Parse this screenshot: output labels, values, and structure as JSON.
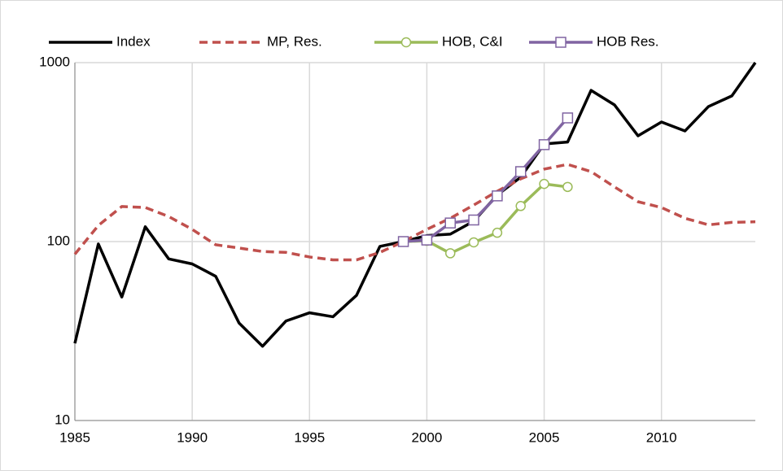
{
  "chart_data": {
    "type": "line",
    "log_y": true,
    "grid": true,
    "legend": "top",
    "x": [
      1985,
      1986,
      1987,
      1988,
      1989,
      1990,
      1991,
      1992,
      1993,
      1994,
      1995,
      1996,
      1997,
      1998,
      1999,
      2000,
      2001,
      2002,
      2003,
      2004,
      2005,
      2006,
      2007,
      2008,
      2009,
      2010,
      2011,
      2012,
      2013,
      2014
    ],
    "xlim": [
      1985,
      2014
    ],
    "xticks": [
      1985,
      1990,
      1995,
      2000,
      2005,
      2010
    ],
    "ylim": [
      10,
      1000
    ],
    "yticks": [
      10,
      100,
      1000
    ],
    "series": [
      {
        "name": "Index",
        "color": "#000000",
        "style": "solid",
        "marker": "none",
        "values": [
          27,
          97,
          49,
          121,
          80,
          75,
          64,
          35,
          26,
          36,
          40,
          38,
          50,
          94,
          100,
          108,
          110,
          130,
          182,
          229,
          351,
          360,
          700,
          580,
          390,
          466,
          415,
          568,
          652,
          1000
        ]
      },
      {
        "name": "MP, Res.",
        "color": "#c0504d",
        "style": "dashed",
        "marker": "none",
        "values": [
          85,
          123,
          157,
          155,
          138,
          117,
          96,
          92,
          88,
          87,
          82,
          79,
          79,
          87,
          100,
          117,
          135,
          160,
          191,
          224,
          254,
          270,
          246,
          202,
          167,
          155,
          135,
          124,
          128,
          129
        ]
      },
      {
        "name": "HOB, C&I",
        "color": "#9bbb59",
        "style": "solid",
        "marker": "circle",
        "values": [
          null,
          null,
          null,
          null,
          null,
          null,
          null,
          null,
          null,
          null,
          null,
          null,
          null,
          null,
          100,
          101,
          86,
          99,
          112,
          158,
          210,
          202,
          null,
          null,
          null,
          null,
          null,
          null,
          null,
          null
        ]
      },
      {
        "name": "HOB Res.",
        "color": "#8064a2",
        "style": "solid",
        "marker": "square",
        "values": [
          null,
          null,
          null,
          null,
          null,
          null,
          null,
          null,
          null,
          null,
          null,
          null,
          null,
          null,
          100,
          102,
          127,
          132,
          180,
          246,
          348,
          491,
          null,
          null,
          null,
          null,
          null,
          null,
          null,
          null
        ]
      }
    ]
  }
}
